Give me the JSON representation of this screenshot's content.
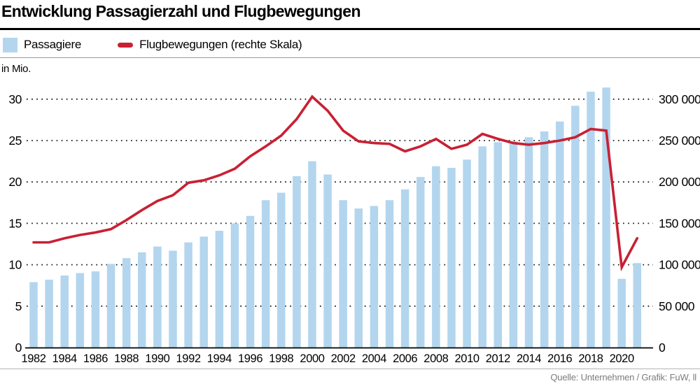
{
  "header": {
    "title": "Entwicklung Passagierzahl und Flugbewegungen"
  },
  "legend": {
    "items": [
      {
        "label": "Passagiere",
        "swatch": "bar",
        "color": "#b3d6ee"
      },
      {
        "label": "Flugbewegungen (rechte Skala)",
        "swatch": "line",
        "color": "#c92033"
      }
    ]
  },
  "source": "Quelle: Unternehmen / Grafik: FuW, ll",
  "chart_data": {
    "type": "bar+line",
    "title": "Entwicklung Passagierzahl und Flugbewegungen",
    "x": [
      1982,
      1983,
      1984,
      1985,
      1986,
      1987,
      1988,
      1989,
      1990,
      1991,
      1992,
      1993,
      1994,
      1995,
      1996,
      1997,
      1998,
      1999,
      2000,
      2001,
      2002,
      2003,
      2004,
      2005,
      2006,
      2007,
      2008,
      2009,
      2010,
      2011,
      2012,
      2013,
      2014,
      2015,
      2016,
      2017,
      2018,
      2019,
      2020,
      2021
    ],
    "x_tick_years": [
      1982,
      1984,
      1986,
      1988,
      1990,
      1992,
      1994,
      1996,
      1998,
      2000,
      2002,
      2004,
      2006,
      2008,
      2010,
      2012,
      2014,
      2016,
      2018,
      2020
    ],
    "series": [
      {
        "name": "Passagiere",
        "type": "bar",
        "axis": "left",
        "unit": "Mio.",
        "color": "#b3d6ee",
        "values": [
          7.9,
          8.2,
          8.7,
          9.0,
          9.2,
          10.1,
          10.8,
          11.5,
          12.2,
          11.7,
          12.7,
          13.4,
          14.1,
          15.0,
          15.9,
          17.8,
          18.7,
          20.7,
          22.5,
          20.9,
          17.8,
          16.8,
          17.1,
          17.8,
          19.1,
          20.6,
          21.9,
          21.7,
          22.7,
          24.3,
          24.8,
          24.9,
          25.4,
          26.1,
          27.3,
          29.2,
          30.9,
          31.4,
          8.3,
          10.2
        ]
      },
      {
        "name": "Flugbewegungen (rechte Skala)",
        "type": "line",
        "axis": "right",
        "color": "#c92033",
        "values": [
          127000,
          127000,
          132000,
          136000,
          139000,
          143000,
          154000,
          166000,
          177000,
          184000,
          199000,
          202000,
          208000,
          216000,
          231000,
          243000,
          256000,
          276000,
          303000,
          286000,
          262000,
          249000,
          247000,
          246000,
          237000,
          243000,
          252000,
          240000,
          245000,
          258000,
          252000,
          247000,
          245000,
          247000,
          250000,
          254000,
          264000,
          262000,
          97000,
          132000
        ]
      }
    ],
    "left_axis": {
      "label": "in Mio.",
      "ticks": [
        0,
        5,
        10,
        15,
        20,
        25,
        30
      ],
      "range": [
        0,
        31.8
      ]
    },
    "right_axis": {
      "ticks": [
        0,
        50000,
        100000,
        150000,
        200000,
        250000,
        300000
      ],
      "tick_labels": [
        "0",
        "50 000",
        "100 000",
        "150 000",
        "200 000",
        "250 000",
        "300 000"
      ],
      "range": [
        0,
        318000
      ]
    },
    "grid": "dotted horizontal, legend top-left"
  },
  "style_colors": {
    "grid_dot": "#1a1a1a",
    "axis_line": "#000000"
  }
}
